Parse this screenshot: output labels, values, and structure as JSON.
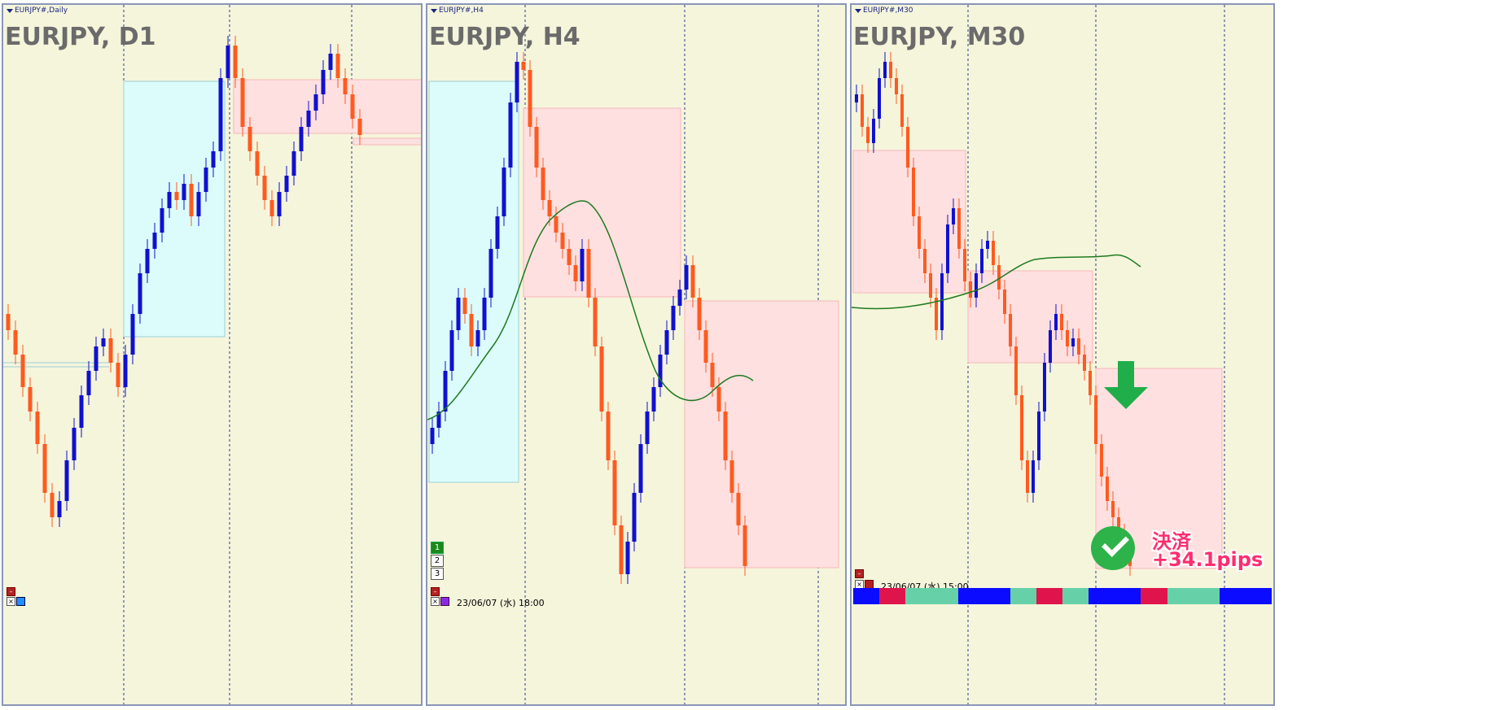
{
  "panels": [
    {
      "header": "EURJPY#,Daily",
      "title": "EURJPY, D1"
    },
    {
      "header": "EURJPY#,H4",
      "title": "EURJPY, H4",
      "date": "23/06/07 (水) 18:00",
      "buttons": [
        "1",
        "2",
        "3"
      ]
    },
    {
      "header": "EURJPY#,M30",
      "title": "EURJPY, M30",
      "date": "23/06/07 (水) 15:00"
    }
  ],
  "trade": {
    "line1": "決済",
    "line2": "+34.1pips"
  },
  "colors": {
    "background": "#f5f5dc",
    "bull": "#1010d0",
    "bear": "#ff5a1f",
    "zone_blue": "#dcfcfc",
    "zone_red": "#ffe0e0",
    "ma": "#1f7a1f",
    "arrow": "#1fae4a",
    "check": "#2db34a"
  },
  "icons": [
    "close-icon",
    "checkmark-icon",
    "down-arrow-icon"
  ],
  "bottom_strip": [
    "blue",
    "red",
    "teal",
    "teal",
    "blue",
    "blue",
    "teal",
    "red",
    "teal",
    "blue",
    "blue",
    "red",
    "teal",
    "teal",
    "blue",
    "blue"
  ]
}
